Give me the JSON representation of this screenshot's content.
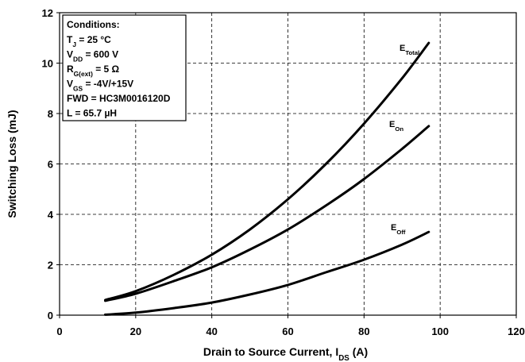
{
  "chart_data": {
    "type": "line",
    "title": "",
    "xlabel": {
      "main": "Drain to Source Current, I",
      "sub": "DS",
      "unit": " (A)"
    },
    "ylabel": "Switching Loss (mJ)",
    "xlim": [
      0,
      120
    ],
    "ylim": [
      0,
      12
    ],
    "xticks": [
      0,
      20,
      40,
      60,
      80,
      100,
      120
    ],
    "yticks": [
      0,
      2,
      4,
      6,
      8,
      10,
      12
    ],
    "grid": true,
    "series": [
      {
        "name": "E",
        "name_sub": "Total",
        "x": [
          12,
          20,
          30,
          40,
          50,
          60,
          70,
          80,
          90,
          97
        ],
        "y": [
          0.6,
          0.95,
          1.6,
          2.4,
          3.4,
          4.6,
          6.0,
          7.6,
          9.4,
          10.8
        ]
      },
      {
        "name": "E",
        "name_sub": "On",
        "x": [
          12,
          20,
          30,
          40,
          50,
          60,
          70,
          80,
          90,
          97
        ],
        "y": [
          0.57,
          0.85,
          1.35,
          1.9,
          2.6,
          3.4,
          4.35,
          5.4,
          6.6,
          7.5
        ]
      },
      {
        "name": "E",
        "name_sub": "Off",
        "x": [
          12,
          20,
          30,
          40,
          50,
          60,
          70,
          80,
          90,
          97
        ],
        "y": [
          0.02,
          0.1,
          0.28,
          0.5,
          0.82,
          1.2,
          1.7,
          2.2,
          2.8,
          3.3
        ]
      }
    ],
    "annotation": {
      "title": "Conditions:",
      "lines": [
        {
          "main": "T",
          "sub": "J",
          "rest": " = 25 °C"
        },
        {
          "main": "V",
          "sub": "DD",
          "rest": " = 600 V"
        },
        {
          "main": "R",
          "sub": "G(ext)",
          "rest": " = 5 Ω"
        },
        {
          "main": "V",
          "sub": "GS",
          "rest": " = -4V/+15V"
        },
        {
          "main": "FWD = HC3M0016120D",
          "sub": "",
          "rest": ""
        },
        {
          "main": "L = 65.7 µH",
          "sub": "",
          "rest": ""
        }
      ]
    }
  }
}
